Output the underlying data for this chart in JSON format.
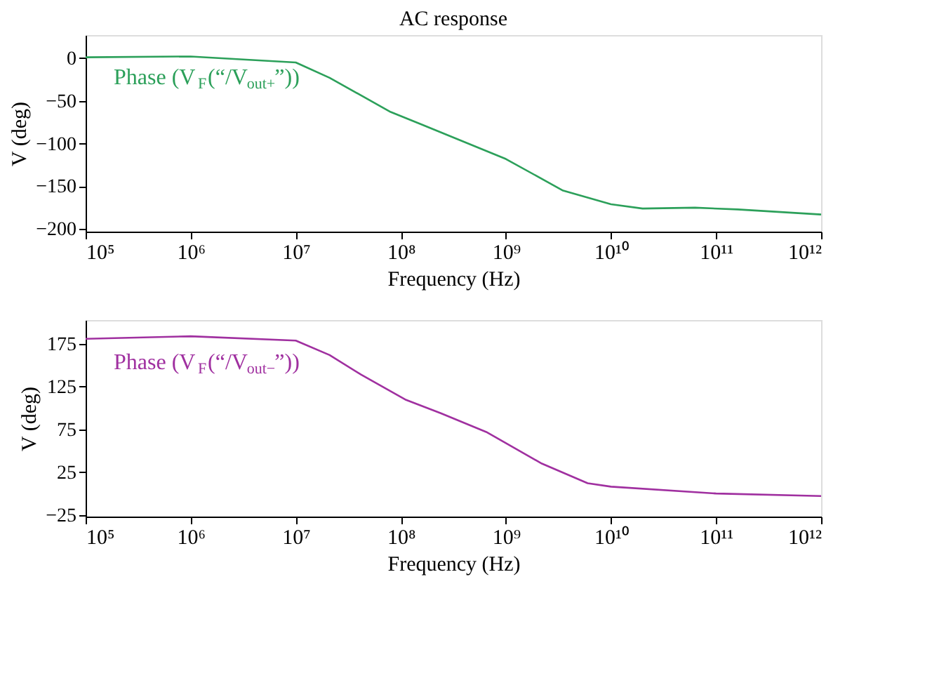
{
  "chart_data": [
    {
      "type": "line",
      "title": "AC response",
      "xlabel": "Frequency (Hz)",
      "ylabel": "V (deg)",
      "log": "x",
      "xlim": [
        100000,
        1000000000000
      ],
      "xticks": [
        {
          "value": 100000,
          "label": "10⁵"
        },
        {
          "value": 1000000,
          "label": "10⁶"
        },
        {
          "value": 10000000,
          "label": "10⁷"
        },
        {
          "value": 100000000,
          "label": "10⁸"
        },
        {
          "value": 1000000000,
          "label": "10⁹"
        },
        {
          "value": 10000000000,
          "label": "10¹⁰"
        },
        {
          "value": 100000000000,
          "label": "10¹¹"
        },
        {
          "value": 1000000000000,
          "label": "10¹²"
        }
      ],
      "ylim": [
        -203,
        27
      ],
      "yticks": [
        0,
        -50,
        -100,
        -150,
        -200
      ],
      "grid": false,
      "series": [
        {
          "name": "Phase (V$_{F}$(“/V$_{out+}$”))",
          "color": "#2ca05a",
          "x": [
            100000,
            1000000,
            10000000,
            21000000,
            80000000,
            160000000,
            1000000000,
            3500000000,
            10000000000,
            20000000000,
            63000000000,
            160000000000,
            1000000000000
          ],
          "values": [
            1,
            2,
            -5,
            -23,
            -63,
            -78,
            -118,
            -155,
            -171,
            -176,
            -175,
            -177,
            -183
          ]
        }
      ]
    },
    {
      "type": "line",
      "xlabel": "Frequency (Hz)",
      "ylabel": "V (deg)",
      "log": "x",
      "xlim": [
        100000,
        1000000000000
      ],
      "xticks": [
        {
          "value": 100000,
          "label": "10⁵"
        },
        {
          "value": 1000000,
          "label": "10⁶"
        },
        {
          "value": 10000000,
          "label": "10⁷"
        },
        {
          "value": 100000000,
          "label": "10⁸"
        },
        {
          "value": 1000000000,
          "label": "10⁹"
        },
        {
          "value": 10000000000,
          "label": "10¹⁰"
        },
        {
          "value": 100000000000,
          "label": "10¹¹"
        },
        {
          "value": 1000000000000,
          "label": "10¹²"
        }
      ],
      "ylim": [
        -27,
        203
      ],
      "yticks": [
        -25,
        25,
        75,
        125,
        175
      ],
      "grid": false,
      "series": [
        {
          "name": "Phase (V$_{F}$(“/V$_{out−}$”))",
          "color": "#a030a0",
          "x": [
            100000,
            1000000,
            10000000,
            21000000,
            42000000,
            110000000,
            240000000,
            650000000,
            2200000000,
            6000000000,
            10000000000,
            100000000000,
            1000000000000
          ],
          "values": [
            181,
            184,
            179,
            162,
            139,
            110,
            94,
            72,
            35,
            12,
            8,
            0,
            -3
          ]
        }
      ]
    }
  ]
}
